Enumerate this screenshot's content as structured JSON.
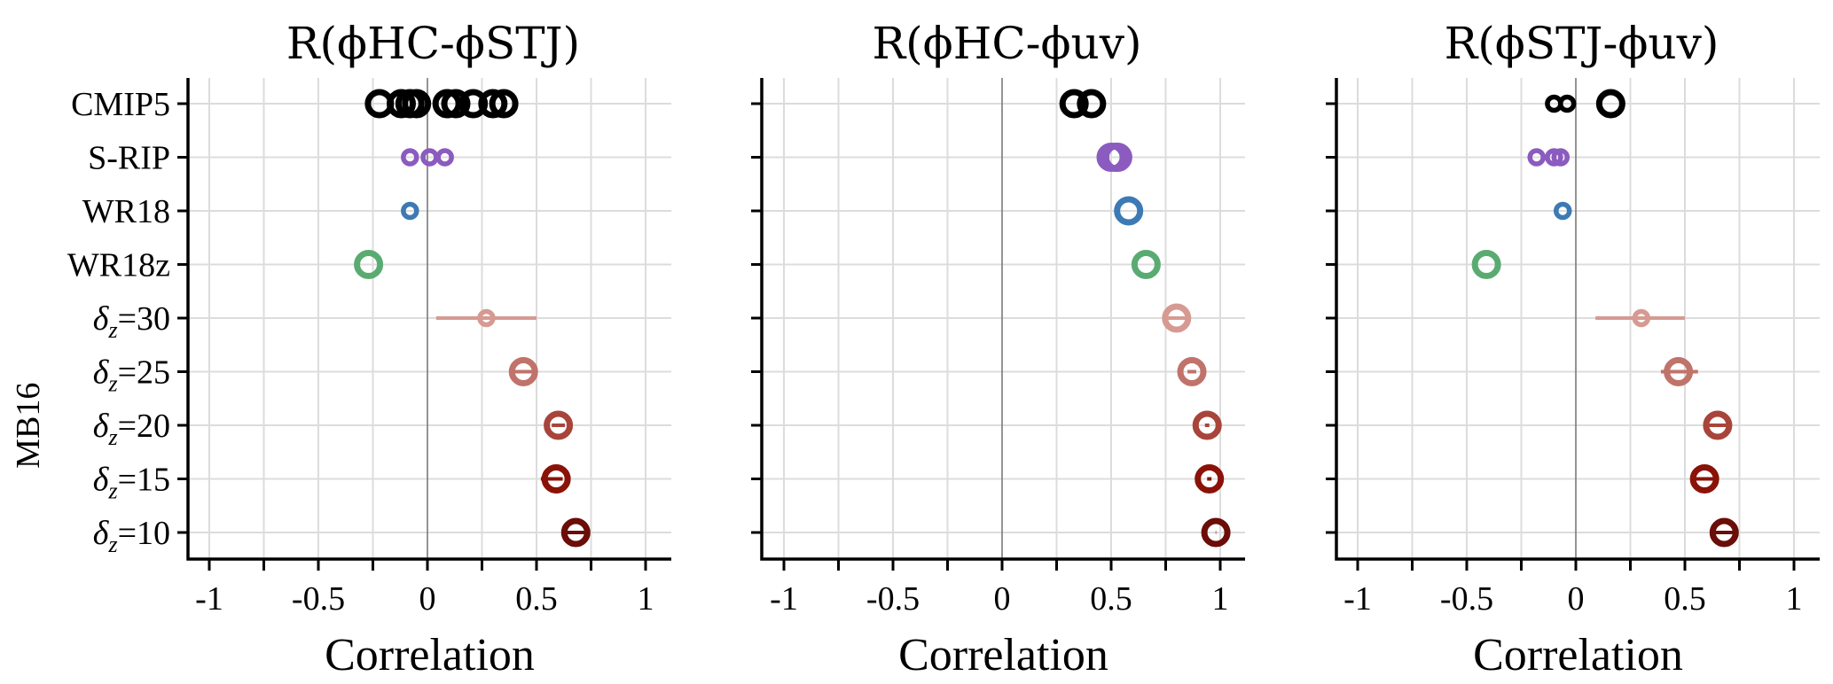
{
  "chart_data": {
    "type": "scatter",
    "description": "Dot plot of correlations with error bars (three panels)",
    "categories": [
      "CMIP5",
      "S-RIP",
      "WR18",
      "WR18z",
      "δz=30",
      "δz=25",
      "δz=20",
      "δz=15",
      "δz=10"
    ],
    "category_labels": [
      {
        "main": "CMIP5",
        "sub": "",
        "rest": ""
      },
      {
        "main": "S-RIP",
        "sub": "",
        "rest": ""
      },
      {
        "main": "WR18",
        "sub": "",
        "rest": ""
      },
      {
        "main": "WR18z",
        "sub": "",
        "rest": ""
      },
      {
        "main": "δ",
        "sub": "z",
        "rest": "=30"
      },
      {
        "main": "δ",
        "sub": "z",
        "rest": "=25"
      },
      {
        "main": "δ",
        "sub": "z",
        "rest": "=20"
      },
      {
        "main": "δ",
        "sub": "z",
        "rest": "=15"
      },
      {
        "main": "δ",
        "sub": "z",
        "rest": "=10"
      }
    ],
    "group_label": "MB16",
    "group_rows": [
      "δz=30",
      "δz=25",
      "δz=20",
      "δz=15",
      "δz=10"
    ],
    "xlabel": "Correlation",
    "xlim": [
      -1.1,
      1.1
    ],
    "xticks": [
      -1,
      -0.75,
      -0.5,
      -0.25,
      0,
      0.25,
      0.5,
      0.75,
      1
    ],
    "xtick_labels": [
      "-1",
      "",
      "-0.5",
      "",
      "0",
      "",
      "0.5",
      "",
      "1"
    ],
    "grid": true,
    "zero_line": true,
    "series_colors": {
      "CMIP5": "#000000",
      "S-RIP": "#8b5bbf",
      "WR18": "#3d7ab5",
      "WR18z": "#5aab72",
      "δz=30": "#d69a92",
      "δz=25": "#c0736a",
      "δz=20": "#a8443a",
      "δz=15": "#8b1208",
      "δz=10": "#6b0d08"
    },
    "panels": [
      {
        "title": "R(ϕHC-ϕSTJ)",
        "points": [
          {
            "cat": "CMIP5",
            "x": -0.22,
            "size": "large"
          },
          {
            "cat": "CMIP5",
            "x": -0.12,
            "size": "large"
          },
          {
            "cat": "CMIP5",
            "x": -0.08,
            "size": "large"
          },
          {
            "cat": "CMIP5",
            "x": -0.05,
            "size": "large"
          },
          {
            "cat": "CMIP5",
            "x": 0.09,
            "size": "large"
          },
          {
            "cat": "CMIP5",
            "x": 0.13,
            "size": "large"
          },
          {
            "cat": "CMIP5",
            "x": 0.21,
            "size": "large"
          },
          {
            "cat": "CMIP5",
            "x": 0.3,
            "size": "large"
          },
          {
            "cat": "CMIP5",
            "x": 0.35,
            "size": "large"
          },
          {
            "cat": "S-RIP",
            "x": -0.08,
            "size": "small"
          },
          {
            "cat": "S-RIP",
            "x": 0.01,
            "size": "small"
          },
          {
            "cat": "S-RIP",
            "x": 0.08,
            "size": "small"
          },
          {
            "cat": "WR18",
            "x": -0.08,
            "size": "small"
          },
          {
            "cat": "WR18z",
            "x": -0.27,
            "size": "large"
          },
          {
            "cat": "δz=30",
            "x": 0.27,
            "size": "small",
            "err": [
              0.04,
              0.5
            ]
          },
          {
            "cat": "δz=25",
            "x": 0.44,
            "size": "large",
            "err": [
              0.39,
              0.49
            ]
          },
          {
            "cat": "δz=20",
            "x": 0.6,
            "size": "large",
            "err": [
              0.57,
              0.63
            ]
          },
          {
            "cat": "δz=15",
            "x": 0.59,
            "size": "large",
            "err": [
              0.52,
              0.62
            ]
          },
          {
            "cat": "δz=10",
            "x": 0.68,
            "size": "large",
            "err": [
              0.64,
              0.72
            ]
          }
        ]
      },
      {
        "title": "R(ϕHC-ϕuv)",
        "points": [
          {
            "cat": "CMIP5",
            "x": 0.33,
            "size": "large"
          },
          {
            "cat": "CMIP5",
            "x": 0.41,
            "size": "large"
          },
          {
            "cat": "S-RIP",
            "x": 0.5,
            "size": "large"
          },
          {
            "cat": "S-RIP",
            "x": 0.52,
            "size": "large"
          },
          {
            "cat": "S-RIP",
            "x": 0.53,
            "size": "large"
          },
          {
            "cat": "WR18",
            "x": 0.58,
            "size": "large"
          },
          {
            "cat": "WR18z",
            "x": 0.66,
            "size": "large"
          },
          {
            "cat": "δz=30",
            "x": 0.8,
            "size": "large",
            "err": [
              0.76,
              0.84
            ]
          },
          {
            "cat": "δz=25",
            "x": 0.87,
            "size": "large",
            "err": [
              0.85,
              0.89
            ]
          },
          {
            "cat": "δz=20",
            "x": 0.94,
            "size": "large",
            "err": [
              0.93,
              0.95
            ]
          },
          {
            "cat": "δz=15",
            "x": 0.95,
            "size": "large",
            "err": [
              0.94,
              0.96
            ]
          },
          {
            "cat": "δz=10",
            "x": 0.98,
            "size": "large",
            "err": [
              0.979,
              0.981
            ]
          }
        ]
      },
      {
        "title": "R(ϕSTJ-ϕuv)",
        "points": [
          {
            "cat": "CMIP5",
            "x": -0.1,
            "size": "small"
          },
          {
            "cat": "CMIP5",
            "x": -0.04,
            "size": "small"
          },
          {
            "cat": "CMIP5",
            "x": 0.16,
            "size": "large"
          },
          {
            "cat": "S-RIP",
            "x": -0.18,
            "size": "small"
          },
          {
            "cat": "S-RIP",
            "x": -0.1,
            "size": "small"
          },
          {
            "cat": "S-RIP",
            "x": -0.07,
            "size": "small"
          },
          {
            "cat": "WR18",
            "x": -0.06,
            "size": "small"
          },
          {
            "cat": "WR18z",
            "x": -0.41,
            "size": "large"
          },
          {
            "cat": "δz=30",
            "x": 0.3,
            "size": "small",
            "err": [
              0.09,
              0.5
            ]
          },
          {
            "cat": "δz=25",
            "x": 0.47,
            "size": "large",
            "err": [
              0.39,
              0.56
            ]
          },
          {
            "cat": "δz=20",
            "x": 0.65,
            "size": "large",
            "err": [
              0.61,
              0.69
            ]
          },
          {
            "cat": "δz=15",
            "x": 0.59,
            "size": "large",
            "err": [
              0.55,
              0.63
            ]
          },
          {
            "cat": "δz=10",
            "x": 0.68,
            "size": "large",
            "err": [
              0.64,
              0.72
            ]
          }
        ]
      }
    ]
  }
}
